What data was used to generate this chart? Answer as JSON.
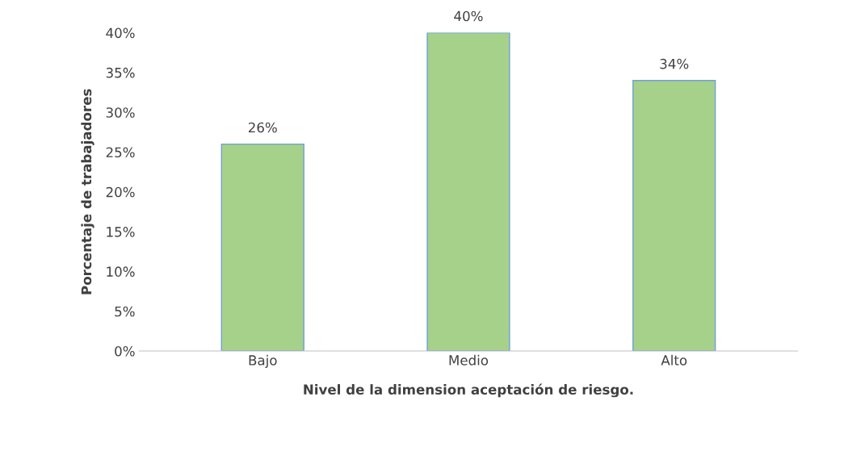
{
  "chart_data": {
    "type": "bar",
    "categories": [
      "Bajo",
      "Medio",
      "Alto"
    ],
    "values": [
      26,
      40,
      34
    ],
    "value_labels": [
      "26%",
      "40%",
      "34%"
    ],
    "color": "#a6d18a",
    "xlabel": "Nivel de la dimension aceptación de riesgo.",
    "ylabel": "Porcentaje de trabajadores",
    "ylim": [
      0,
      40
    ],
    "yticks": [
      {
        "value": 0,
        "label": "0%"
      },
      {
        "value": 5,
        "label": "5%"
      },
      {
        "value": 10,
        "label": "10%"
      },
      {
        "value": 15,
        "label": "15%"
      },
      {
        "value": 20,
        "label": "20%"
      },
      {
        "value": 25,
        "label": "25%"
      },
      {
        "value": 30,
        "label": "30%"
      },
      {
        "value": 35,
        "label": "35%"
      },
      {
        "value": 40,
        "label": "40%"
      }
    ],
    "grid": false,
    "legend": false
  }
}
